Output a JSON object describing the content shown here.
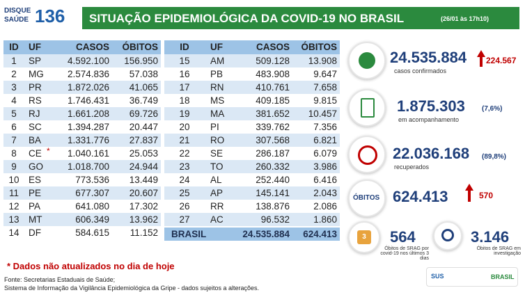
{
  "header": {
    "logo_top": "DISQUE",
    "logo_bottom": "SAÚDE",
    "logo_number": "136",
    "title": "SITUAÇÃO EPIDEMIOLÓGICA DA COVID-19 NO BRASIL",
    "timestamp": "(26/01 às 17h10)"
  },
  "table_left": {
    "columns": [
      "ID",
      "UF",
      "CASOS",
      "ÓBITOS"
    ],
    "rows": [
      {
        "id": "1",
        "uf": "SP",
        "casos": "4.592.100",
        "obitos": "156.950"
      },
      {
        "id": "2",
        "uf": "MG",
        "casos": "2.574.836",
        "obitos": "57.038"
      },
      {
        "id": "3",
        "uf": "PR",
        "casos": "1.872.026",
        "obitos": "41.065"
      },
      {
        "id": "4",
        "uf": "RS",
        "casos": "1.746.431",
        "obitos": "36.749"
      },
      {
        "id": "5",
        "uf": "RJ",
        "casos": "1.661.208",
        "obitos": "69.726"
      },
      {
        "id": "6",
        "uf": "SC",
        "casos": "1.394.287",
        "obitos": "20.447"
      },
      {
        "id": "7",
        "uf": "BA",
        "casos": "1.331.776",
        "obitos": "27.837"
      },
      {
        "id": "8",
        "uf": "CE",
        "mark": "*",
        "casos": "1.040.161",
        "obitos": "25.053"
      },
      {
        "id": "9",
        "uf": "GO",
        "casos": "1.018.700",
        "obitos": "24.944"
      },
      {
        "id": "10",
        "uf": "ES",
        "casos": "773.536",
        "obitos": "13.449"
      },
      {
        "id": "11",
        "uf": "PE",
        "casos": "677.307",
        "obitos": "20.607"
      },
      {
        "id": "12",
        "uf": "PA",
        "casos": "641.080",
        "obitos": "17.302"
      },
      {
        "id": "13",
        "uf": "MT",
        "casos": "606.349",
        "obitos": "13.962"
      },
      {
        "id": "14",
        "uf": "DF",
        "casos": "584.615",
        "obitos": "11.152"
      }
    ]
  },
  "table_right": {
    "columns": [
      "ID",
      "UF",
      "CASOS",
      "ÓBITOS"
    ],
    "rows": [
      {
        "id": "15",
        "uf": "AM",
        "casos": "509.128",
        "obitos": "13.908"
      },
      {
        "id": "16",
        "uf": "PB",
        "casos": "483.908",
        "obitos": "9.647"
      },
      {
        "id": "17",
        "uf": "RN",
        "casos": "410.761",
        "obitos": "7.658"
      },
      {
        "id": "18",
        "uf": "MS",
        "casos": "409.185",
        "obitos": "9.815"
      },
      {
        "id": "19",
        "uf": "MA",
        "casos": "381.652",
        "obitos": "10.457"
      },
      {
        "id": "20",
        "uf": "PI",
        "casos": "339.762",
        "obitos": "7.356"
      },
      {
        "id": "21",
        "uf": "RO",
        "casos": "307.568",
        "obitos": "6.821"
      },
      {
        "id": "22",
        "uf": "SE",
        "casos": "286.187",
        "obitos": "6.079"
      },
      {
        "id": "23",
        "uf": "TO",
        "casos": "260.332",
        "obitos": "3.986"
      },
      {
        "id": "24",
        "uf": "AL",
        "casos": "252.440",
        "obitos": "6.416"
      },
      {
        "id": "25",
        "uf": "AP",
        "casos": "145.141",
        "obitos": "2.043"
      },
      {
        "id": "26",
        "uf": "RR",
        "casos": "138.876",
        "obitos": "2.086"
      },
      {
        "id": "27",
        "uf": "AC",
        "casos": "96.532",
        "obitos": "1.860"
      }
    ],
    "total": {
      "label": "BRASIL",
      "casos": "24.535.884",
      "obitos": "624.413"
    }
  },
  "stats": {
    "confirmed": {
      "value": "24.535.884",
      "increase": "224.567",
      "label": "casos confirmados"
    },
    "monitoring": {
      "value": "1.875.303",
      "percent": "(7,6%)",
      "label": "em acompanhamento"
    },
    "recovered": {
      "value": "22.036.168",
      "percent": "(89,8%)",
      "label": "recuperados"
    },
    "deaths": {
      "label": "ÓBITOS",
      "value": "624.413",
      "increase": "570"
    },
    "srag_recent": {
      "icon": "3",
      "value": "564",
      "label": "Óbitos de SRAG por covid-19 nos últimos 3 dias"
    },
    "srag_investigation": {
      "value": "3.146",
      "label": "Óbitos de SRAG em investigação"
    }
  },
  "footer": {
    "note": "* Dados não atualizados no dia de hoje",
    "source_1": "Fonte: Secretarias Estaduais de Saúde;",
    "source_2": "Sistema de Informação da Vigilância Epidemiológica da Gripe - dados sujeitos a alterações.",
    "logo_sus": "SUS",
    "logo_brasil": "BRASIL"
  }
}
